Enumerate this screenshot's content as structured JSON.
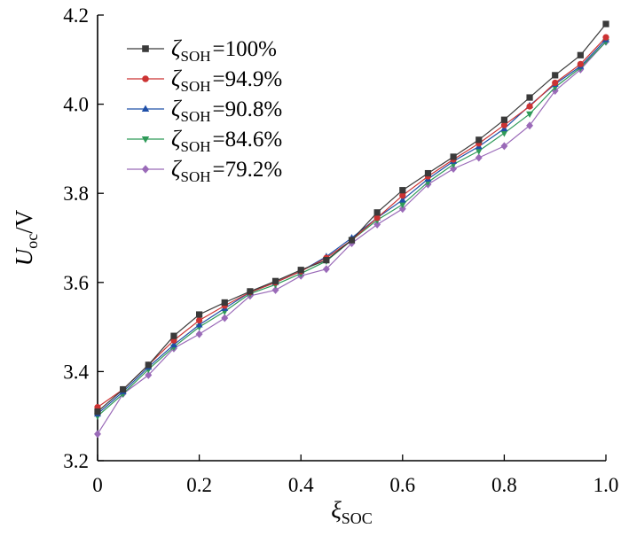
{
  "chart_data": {
    "type": "line",
    "title": "",
    "xlabel": {
      "main": "ξ",
      "sub": "SOC"
    },
    "ylabel": {
      "main": "U",
      "sub": "oc",
      "unit": "/V"
    },
    "xlim": [
      0,
      1.0
    ],
    "ylim": [
      3.2,
      4.2
    ],
    "xticks": [
      0,
      0.2,
      0.4,
      0.6,
      0.8,
      1.0
    ],
    "xtick_labels": [
      "0",
      "0.2",
      "0.4",
      "0.6",
      "0.8",
      "1.0"
    ],
    "yticks": [
      3.2,
      3.4,
      3.6,
      3.8,
      4.0,
      4.2
    ],
    "ytick_labels": [
      "3.2",
      "3.4",
      "3.6",
      "3.8",
      "4.0",
      "4.2"
    ],
    "grid": false,
    "legend_position": "top-left",
    "x": [
      0,
      0.05,
      0.1,
      0.15,
      0.2,
      0.25,
      0.3,
      0.35,
      0.4,
      0.45,
      0.5,
      0.55,
      0.6,
      0.65,
      0.7,
      0.75,
      0.8,
      0.85,
      0.9,
      0.95,
      1.0
    ],
    "series": [
      {
        "name": "ζSOH=100%",
        "legend": {
          "symbol": "ζ",
          "sub": "SOH",
          "rest": "=100%"
        },
        "color": "#3a3a3a",
        "marker": "square",
        "values": [
          3.31,
          3.36,
          3.415,
          3.48,
          3.528,
          3.555,
          3.58,
          3.603,
          3.628,
          3.65,
          3.695,
          3.757,
          3.807,
          3.845,
          3.882,
          3.92,
          3.965,
          4.015,
          4.065,
          4.11,
          4.18
        ]
      },
      {
        "name": "ζSOH=94.9%",
        "legend": {
          "symbol": "ζ",
          "sub": "SOH",
          "rest": "=94.9%"
        },
        "color": "#cc3333",
        "marker": "circle",
        "values": [
          3.32,
          3.36,
          3.415,
          3.47,
          3.515,
          3.548,
          3.578,
          3.6,
          3.625,
          3.655,
          3.695,
          3.745,
          3.795,
          3.838,
          3.876,
          3.912,
          3.953,
          3.995,
          4.048,
          4.09,
          4.15
        ]
      },
      {
        "name": "ζSOH=90.8%",
        "legend": {
          "symbol": "ζ",
          "sub": "SOH",
          "rest": "=90.8%"
        },
        "color": "#1f4fa8",
        "marker": "triangle-up",
        "values": [
          3.305,
          3.355,
          3.41,
          3.46,
          3.505,
          3.542,
          3.578,
          3.6,
          3.625,
          3.658,
          3.7,
          3.745,
          3.785,
          3.832,
          3.872,
          3.905,
          3.945,
          3.997,
          4.045,
          4.085,
          4.145
        ]
      },
      {
        "name": "ζSOH=84.6%",
        "legend": {
          "symbol": "ζ",
          "sub": "SOH",
          "rest": "=84.6%"
        },
        "color": "#2e9a58",
        "marker": "triangle-down",
        "values": [
          3.3,
          3.35,
          3.405,
          3.455,
          3.5,
          3.535,
          3.575,
          3.595,
          3.62,
          3.648,
          3.695,
          3.74,
          3.775,
          3.825,
          3.865,
          3.895,
          3.935,
          3.978,
          4.038,
          4.082,
          4.14
        ]
      },
      {
        "name": "ζSOH=79.2%",
        "legend": {
          "symbol": "ζ",
          "sub": "SOH",
          "rest": "=79.2%"
        },
        "color": "#9a6ab8",
        "marker": "diamond",
        "values": [
          3.26,
          3.35,
          3.392,
          3.452,
          3.484,
          3.52,
          3.57,
          3.583,
          3.615,
          3.63,
          3.688,
          3.73,
          3.765,
          3.82,
          3.855,
          3.88,
          3.906,
          3.952,
          4.03,
          4.078,
          4.14
        ]
      }
    ]
  }
}
